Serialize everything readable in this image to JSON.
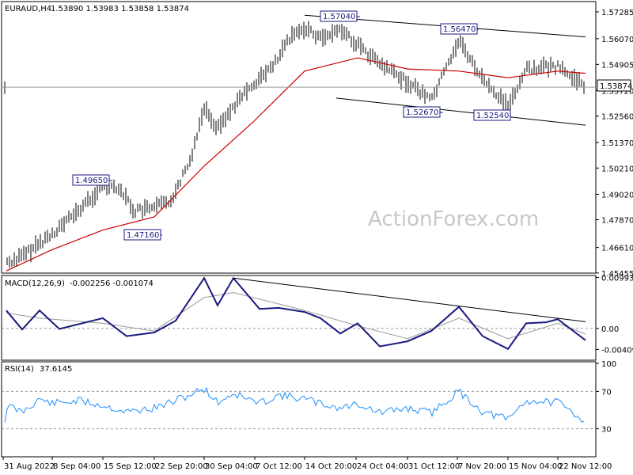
{
  "header": {
    "symbol": "EURAUD,H4",
    "ohlc": "1.53890 1.53983 1.53858 1.53874"
  },
  "watermark": "ActionForex.com",
  "current_price_label": "1.53874",
  "macd_header": {
    "name": "MACD(12,26,9)",
    "values": "-0.002256 -0.001074"
  },
  "rsi_header": {
    "name": "RSI(14)",
    "value": "37.6145"
  },
  "colors": {
    "candle": "#000000",
    "sma": "#cc0000",
    "macd": "#1a1a80",
    "signal": "#999999",
    "rsi": "#1e90ff",
    "trendline": "#000000"
  },
  "chart_data": [
    {
      "type": "line",
      "panel": "price",
      "title": "EURAUD,H4",
      "y_ticks": [
        "1.57285",
        "1.56070",
        "1.54905",
        "1.53720",
        "1.52560",
        "1.51370",
        "1.50210",
        "1.49020",
        "1.47870",
        "1.46610",
        "1.45455"
      ],
      "ylim": [
        1.4545,
        1.5775
      ],
      "x_ticks": [
        "31 Aug 2022",
        "8 Sep 04:00",
        "15 Sep 12:00",
        "22 Sep 20:00",
        "30 Sep 04:00",
        "7 Oct 12:00",
        "14 Oct 20:00",
        "24 Oct 04:00",
        "31 Oct 12:00",
        "7 Nov 20:00",
        "15 Nov 04:00",
        "22 Nov 12:00"
      ],
      "series": [
        {
          "kind": "price",
          "points": [
            [
              "31 Aug 2022",
              1.459
            ],
            [
              "3 Sep",
              1.462
            ],
            [
              "8 Sep 04:00",
              1.472
            ],
            [
              "12 Sep",
              1.483
            ],
            [
              "15 Sep 12:00",
              1.494
            ],
            [
              "18 Sep",
              1.4935
            ],
            [
              "20 Sep",
              1.4825
            ],
            [
              "22 Sep 20:00",
              1.484
            ],
            [
              "25 Sep",
              1.487
            ],
            [
              "28 Sep",
              1.505
            ],
            [
              "30 Sep 04:00",
              1.53
            ],
            [
              "3 Oct",
              1.52
            ],
            [
              "5 Oct",
              1.53
            ],
            [
              "7 Oct 12:00",
              1.54
            ],
            [
              "10 Oct",
              1.548
            ],
            [
              "12 Oct",
              1.56
            ],
            [
              "14 Oct 20:00",
              1.566
            ],
            [
              "18 Oct",
              1.561
            ],
            [
              "21 Oct",
              1.565
            ],
            [
              "24 Oct 04:00",
              1.558
            ],
            [
              "27 Oct",
              1.549
            ],
            [
              "31 Oct 12:00",
              1.541
            ],
            [
              "3 Nov",
              1.533
            ],
            [
              "7 Nov 20:00",
              1.56
            ],
            [
              "10 Nov",
              1.542
            ],
            [
              "15 Nov 04:00",
              1.53
            ],
            [
              "18 Nov",
              1.547
            ],
            [
              "22 Nov 12:00",
              1.548
            ],
            [
              "24 Nov",
              1.5387
            ]
          ]
        },
        {
          "kind": "moving-average",
          "points": [
            [
              "31 Aug 2022",
              1.4555
            ],
            [
              "8 Sep 04:00",
              1.465
            ],
            [
              "15 Sep 12:00",
              1.474
            ],
            [
              "22 Sep 20:00",
              1.48
            ],
            [
              "30 Sep 04:00",
              1.503
            ],
            [
              "7 Oct 12:00",
              1.523
            ],
            [
              "14 Oct 20:00",
              1.546
            ],
            [
              "24 Oct 04:00",
              1.552
            ],
            [
              "31 Oct 12:00",
              1.547
            ],
            [
              "7 Nov 20:00",
              1.546
            ],
            [
              "15 Nov 04:00",
              1.543
            ],
            [
              "22 Nov 12:00",
              1.546
            ],
            [
              "24 Nov",
              1.545
            ]
          ]
        }
      ],
      "horizontal_line": 1.53874,
      "annotations": [
        "1.57040",
        "1.56470",
        "1.49650",
        "1.47160",
        "1.52670",
        "1.52540"
      ],
      "channel": {
        "upper": [
          [
            "14 Oct 20:00",
            1.5713
          ],
          [
            "24 Nov",
            1.5615
          ]
        ],
        "lower": [
          [
            "13 Oct",
            1.5338
          ],
          [
            "24 Nov",
            1.5215
          ]
        ]
      }
    },
    {
      "type": "line",
      "panel": "macd",
      "title": "MACD(12,26,9) -0.002256 -0.001074",
      "y_ticks": [
        "0.009934",
        "0.00",
        "-0.004095"
      ],
      "ylim": [
        -0.00619,
        0.01
      ],
      "series": [
        {
          "kind": "macd",
          "points": [
            [
              "31 Aug 2022",
              0.0035
            ],
            [
              "3 Sep",
              -0.0002
            ],
            [
              "6 Sep",
              0.0035
            ],
            [
              "9 Sep",
              -0.0001
            ],
            [
              "15 Sep 12:00",
              0.002
            ],
            [
              "19 Sep",
              -0.0015
            ],
            [
              "22 Sep 20:00",
              -0.0008
            ],
            [
              "26 Sep",
              0.0015
            ],
            [
              "30 Sep 04:00",
              0.0098
            ],
            [
              "3 Oct",
              0.0045
            ],
            [
              "5 Oct",
              0.0098
            ],
            [
              "8 Oct",
              0.0038
            ],
            [
              "11 Oct",
              0.004
            ],
            [
              "14 Oct 20:00",
              0.0032
            ],
            [
              "18 Oct",
              0.002
            ],
            [
              "21 Oct",
              -0.001
            ],
            [
              "24 Oct 04:00",
              0.001
            ],
            [
              "27 Oct",
              -0.0035
            ],
            [
              "31 Oct 12:00",
              -0.0025
            ],
            [
              "3 Nov",
              -0.0005
            ],
            [
              "7 Nov 20:00",
              0.0042
            ],
            [
              "10 Nov",
              -0.0015
            ],
            [
              "15 Nov 04:00",
              -0.004
            ],
            [
              "18 Nov",
              0.001
            ],
            [
              "21 Nov",
              0.0012
            ],
            [
              "22 Nov 12:00",
              0.0018
            ],
            [
              "24 Nov",
              -0.0023
            ]
          ]
        },
        {
          "kind": "signal",
          "points": [
            [
              "31 Aug 2022",
              0.003
            ],
            [
              "6 Sep",
              0.002
            ],
            [
              "15 Sep 12:00",
              0.001
            ],
            [
              "22 Sep 20:00",
              -0.0005
            ],
            [
              "30 Sep 04:00",
              0.006
            ],
            [
              "5 Oct",
              0.007
            ],
            [
              "14 Oct 20:00",
              0.0035
            ],
            [
              "24 Oct 04:00",
              0.0005
            ],
            [
              "31 Oct 12:00",
              -0.002
            ],
            [
              "7 Nov 20:00",
              0.002
            ],
            [
              "15 Nov 04:00",
              -0.002
            ],
            [
              "22 Nov 12:00",
              0.001
            ],
            [
              "24 Nov",
              -0.0011
            ]
          ]
        }
      ],
      "trendline": [
        [
          "5 Oct",
          0.0098
        ],
        [
          "24 Nov",
          0.0013
        ]
      ]
    },
    {
      "type": "line",
      "panel": "rsi",
      "title": "RSI(14) 37.6145",
      "y_ticks": [
        "100",
        "70",
        "30"
      ],
      "ylim": [
        0,
        100
      ],
      "reference_lines": [
        70,
        30
      ],
      "series": [
        {
          "kind": "rsi",
          "points": [
            [
              "31 Aug 2022",
              55
            ],
            [
              "3 Sep",
              48
            ],
            [
              "6 Sep",
              62
            ],
            [
              "8 Sep 04:00",
              57
            ],
            [
              "12 Sep",
              60
            ],
            [
              "15 Sep 12:00",
              55
            ],
            [
              "19 Sep",
              48
            ],
            [
              "22 Sep 20:00",
              52
            ],
            [
              "26 Sep",
              60
            ],
            [
              "30 Sep 04:00",
              73
            ],
            [
              "3 Oct",
              58
            ],
            [
              "5 Oct",
              68
            ],
            [
              "8 Oct",
              57
            ],
            [
              "11 Oct",
              66
            ],
            [
              "14 Oct 20:00",
              62
            ],
            [
              "18 Oct",
              57
            ],
            [
              "21 Oct",
              52
            ],
            [
              "24 Oct 04:00",
              57
            ],
            [
              "27 Oct",
              47
            ],
            [
              "31 Oct 12:00",
              52
            ],
            [
              "3 Nov",
              47
            ],
            [
              "7 Nov 20:00",
              70
            ],
            [
              "10 Nov",
              48
            ],
            [
              "15 Nov 04:00",
              40
            ],
            [
              "18 Nov",
              60
            ],
            [
              "22 Nov 12:00",
              58
            ],
            [
              "24 Nov",
              38
            ]
          ]
        }
      ]
    }
  ]
}
